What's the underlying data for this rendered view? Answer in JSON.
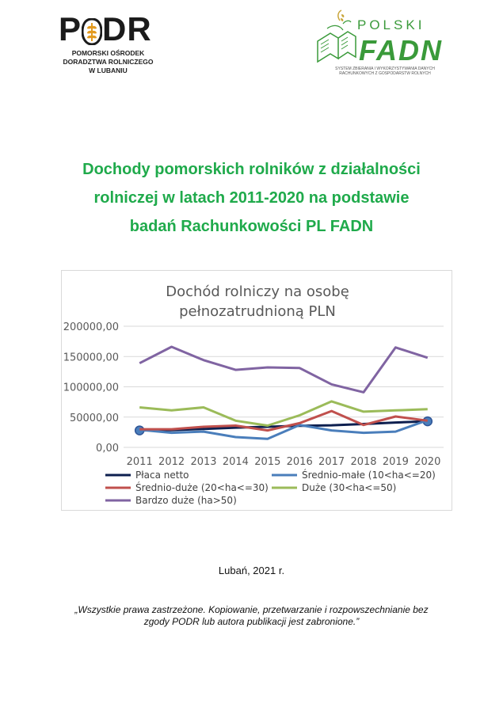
{
  "header": {
    "podr_logo": {
      "word": "PODR",
      "subtitle_lines": [
        "POMORSKI OŚRODEK",
        "DORADZTWA ROLNICZEGO",
        "W LUBANIU"
      ]
    },
    "fadn_logo": {
      "top": "POLSKI",
      "word": "FADN",
      "subtitle": "SYSTEM ZBIERANIA I WYKORZYSTYWANIA DANYCH RACHUNKOWYCH Z GOSPODARSTW ROLNYCH"
    }
  },
  "title_lines": [
    "Dochody pomorskich rolników z działalności",
    "rolniczej w latach 2011-2020 na podstawie",
    "badań Rachunkowości PL FADN"
  ],
  "chart_data": {
    "type": "line",
    "title_lines": [
      "Dochód rolniczy na osobę",
      "pełnozatrudnioną PLN"
    ],
    "categories": [
      "2011",
      "2012",
      "2013",
      "2014",
      "2015",
      "2016",
      "2017",
      "2018",
      "2019",
      "2020"
    ],
    "y_tick_labels": [
      "0,00",
      "50000,00",
      "100000,00",
      "150000,00",
      "200000,00"
    ],
    "ylim": [
      0,
      200000
    ],
    "grid": true,
    "legend_position": "bottom",
    "series": [
      {
        "name": "Płaca netto",
        "color": "#0d1f4f",
        "values": [
          28000,
          28500,
          30500,
          32500,
          34000,
          35500,
          36500,
          38500,
          41000,
          43000
        ],
        "end_markers": true
      },
      {
        "name": "Średnio-małe (10<ha<=20)",
        "color": "#4a7ebb",
        "values": [
          29000,
          24000,
          26000,
          17000,
          14000,
          37000,
          28000,
          24000,
          26000,
          45000
        ]
      },
      {
        "name": "Średnio-duże (20<ha<=30)",
        "color": "#c0504d",
        "values": [
          30000,
          30000,
          34000,
          36000,
          28000,
          40000,
          60000,
          37000,
          51000,
          44000
        ]
      },
      {
        "name": "Duże (30<ha<=50)",
        "color": "#9bbb59",
        "values": [
          66000,
          61000,
          66000,
          44000,
          36000,
          53000,
          76000,
          59000,
          61000,
          63000
        ]
      },
      {
        "name": "Bardzo duże (ha>50)",
        "color": "#8064a2",
        "values": [
          139000,
          166000,
          144000,
          128000,
          132000,
          131000,
          104000,
          91000,
          165000,
          148000
        ]
      }
    ]
  },
  "footer": {
    "place_date": "Lubań, 2021 r.",
    "rights_lines": [
      "„Wszystkie prawa zastrzeżone. Kopiowanie, przetwarzanie i rozpowszechnianie bez",
      "zgody PODR lub autora publikacji jest zabronione.”"
    ]
  }
}
